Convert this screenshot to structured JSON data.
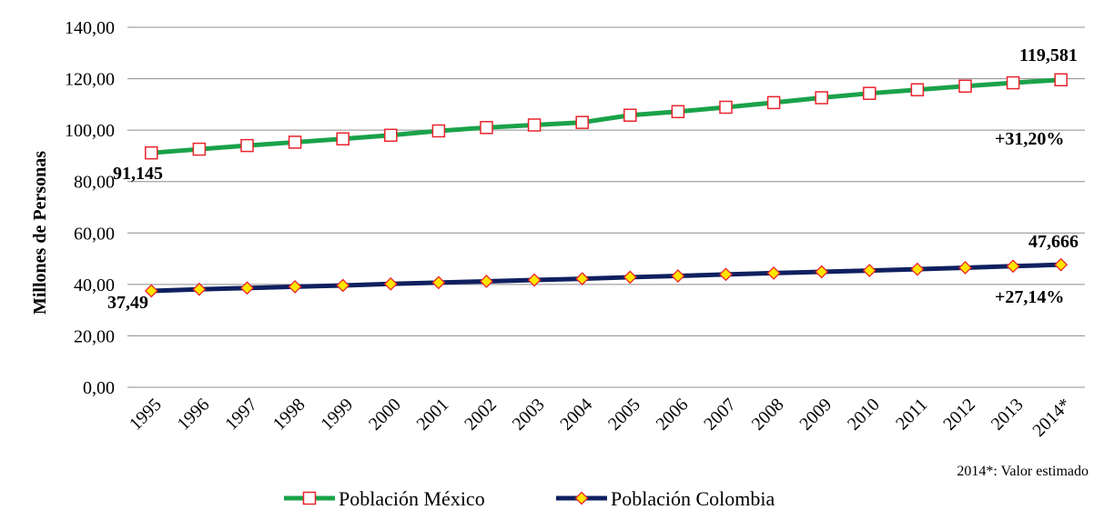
{
  "chart_data": {
    "type": "line",
    "ylabel": "Millones de Personas",
    "xlabel": "",
    "ylim": [
      0,
      140
    ],
    "yticks": [
      "0,00",
      "20,00",
      "40,00",
      "60,00",
      "80,00",
      "100,00",
      "120,00",
      "140,00"
    ],
    "categories": [
      "1995",
      "1996",
      "1997",
      "1998",
      "1999",
      "2000",
      "2001",
      "2002",
      "2003",
      "2004",
      "2005",
      "2006",
      "2007",
      "2008",
      "2009",
      "2010",
      "2011",
      "2012",
      "2013",
      "2014*"
    ],
    "grid": true,
    "legend_position": "bottom",
    "series": [
      {
        "name": "Población México",
        "line_color": "#1aa24a",
        "marker": "square",
        "marker_stroke": "#e8242c",
        "marker_fill": "#ffffff",
        "values": [
          91.145,
          92.6,
          94.0,
          95.3,
          96.6,
          98.0,
          99.7,
          101.0,
          102.0,
          103.0,
          105.8,
          107.2,
          108.9,
          110.7,
          112.6,
          114.3,
          115.7,
          117.1,
          118.4,
          119.581
        ]
      },
      {
        "name": "Población Colombia",
        "line_color": "#0f2060",
        "marker": "diamond",
        "marker_stroke": "#e8242c",
        "marker_fill": "#ffe600",
        "values": [
          37.49,
          38.1,
          38.6,
          39.1,
          39.6,
          40.2,
          40.7,
          41.2,
          41.7,
          42.2,
          42.8,
          43.3,
          43.9,
          44.4,
          44.9,
          45.4,
          45.9,
          46.5,
          47.1,
          47.666
        ]
      }
    ],
    "annotations": {
      "mx_start": "91,145",
      "mx_end": "119,581",
      "mx_change": "+31,20%",
      "co_start": "37,49",
      "co_end": "47,666",
      "co_change": "+27,14%"
    },
    "note": "2014*: Valor estimado"
  }
}
